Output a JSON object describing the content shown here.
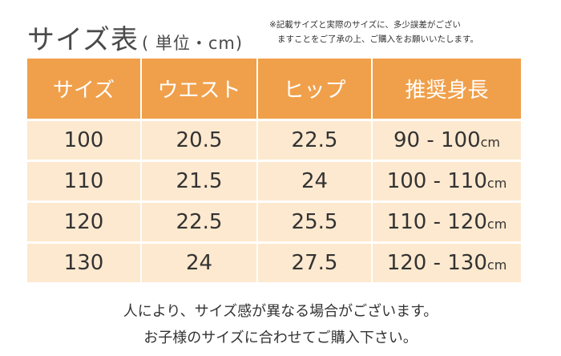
{
  "header": {
    "title": "サイズ表",
    "unit_label": "( 単位・cm)",
    "note_line1": "※記載サイズと実際のサイズに、多少誤差がござい",
    "note_line2": "ますことをご了承の上、ご購入をお願いいたします。"
  },
  "table": {
    "headers": [
      "サイズ",
      "ウエスト",
      "ヒップ",
      "推奨身長"
    ],
    "unit": "cm",
    "rows": [
      {
        "size": "100",
        "waist": "20.5",
        "hip": "22.5",
        "height": "90 - 100"
      },
      {
        "size": "110",
        "waist": "21.5",
        "hip": "24",
        "height": "100 - 110"
      },
      {
        "size": "120",
        "waist": "22.5",
        "hip": "25.5",
        "height": "110 - 120"
      },
      {
        "size": "130",
        "waist": "24",
        "hip": "27.5",
        "height": "120 - 130"
      }
    ]
  },
  "footer": {
    "line1": "人により、サイズ感が異なる場合がございます。",
    "line2": "お子様のサイズに合わせてご購入下さい。"
  },
  "colors": {
    "header_bg": "#f0a04b",
    "row_bg": "#fde9cf",
    "text": "#333333"
  }
}
